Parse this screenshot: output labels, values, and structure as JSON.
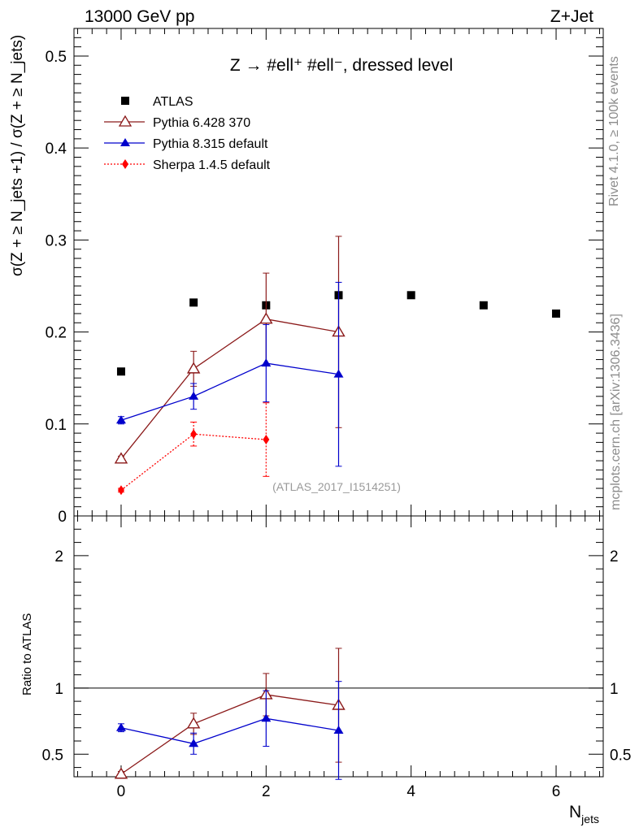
{
  "header": {
    "energy_label": "13000 GeV pp",
    "process_label": "Z+Jet"
  },
  "side_text": {
    "rivet": "Rivet 4.1.0, ≥ 100k events",
    "site": "mcplots.cern.ch [arXiv:1306.3436]"
  },
  "chart_data": {
    "type": "scatter",
    "title": "Z → #ell⁺ #ell⁻, dressed level",
    "analysis_label": "(ATLAS_2017_I1514251)",
    "xlabel": "N",
    "xlabel_sub": "jets",
    "xlim": [
      -0.65,
      6.65
    ],
    "x_ticks": [
      "0",
      "2",
      "4",
      "6"
    ],
    "main": {
      "ylabel": "σ(Z + ≥ N_jets +1) / σ(Z + ≥ N_jets)",
      "ylim": [
        0,
        0.53
      ],
      "y_ticks": [
        "0",
        "0.1",
        "0.2",
        "0.3",
        "0.4",
        "0.5"
      ]
    },
    "ratio": {
      "ylabel": "Ratio to ATLAS",
      "ylim": [
        0.33,
        2.3
      ],
      "y_ticks": [
        "0.5",
        "1",
        "2"
      ],
      "y_ticks_right": [
        "0.5",
        "1",
        "2"
      ]
    },
    "series": [
      {
        "name": "ATLAS",
        "color": "#000000",
        "marker": "square",
        "line": "none",
        "x": [
          0,
          1,
          2,
          3,
          4,
          5,
          6
        ],
        "y": [
          0.157,
          0.232,
          0.229,
          0.24,
          0.24,
          0.229,
          0.22
        ],
        "err": [
          0,
          0,
          0,
          0,
          0,
          0,
          0
        ]
      },
      {
        "name": "Pythia 6.428 370",
        "color": "#8b1a1a",
        "marker": "triangle-open",
        "line": "solid",
        "x": [
          0,
          1,
          2,
          3
        ],
        "y": [
          0.062,
          0.16,
          0.214,
          0.2
        ],
        "err": [
          0.003,
          0.019,
          0.05,
          0.104
        ],
        "ratio": [
          0.35,
          0.73,
          0.95,
          0.87
        ],
        "ratio_err": [
          0.02,
          0.08,
          0.16,
          0.43
        ]
      },
      {
        "name": "Pythia 8.315 default",
        "color": "#0000cc",
        "marker": "triangle-filled",
        "line": "solid",
        "x": [
          0,
          1,
          2,
          3
        ],
        "y": [
          0.104,
          0.13,
          0.166,
          0.154
        ],
        "err": [
          0.004,
          0.014,
          0.042,
          0.1
        ],
        "ratio": [
          0.7,
          0.58,
          0.77,
          0.68
        ],
        "ratio_err": [
          0.03,
          0.08,
          0.21,
          0.37
        ]
      },
      {
        "name": "Sherpa 1.4.5 default",
        "color": "#ff0000",
        "marker": "diamond-filled",
        "line": "dotted",
        "x": [
          0,
          1,
          2
        ],
        "y": [
          0.028,
          0.089,
          0.083
        ],
        "err": [
          0.002,
          0.013,
          0.04
        ]
      }
    ]
  }
}
